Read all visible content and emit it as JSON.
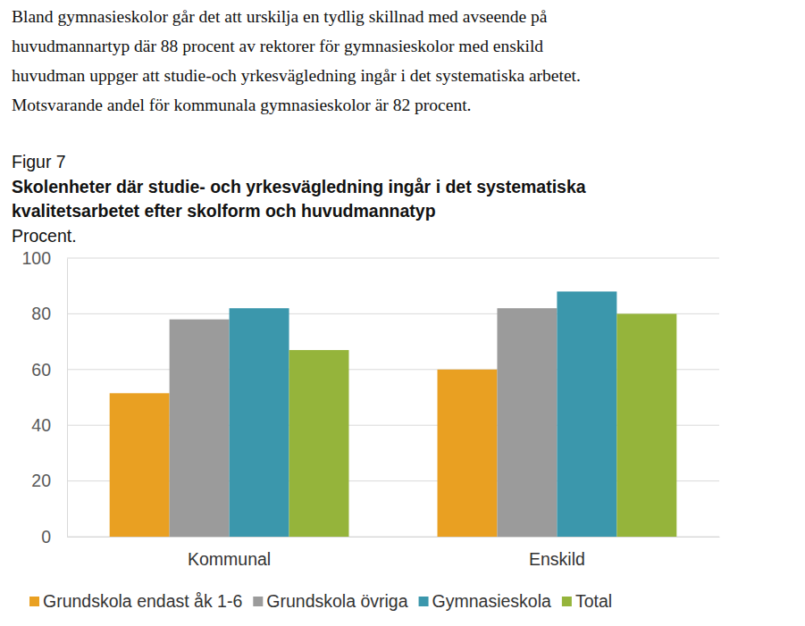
{
  "paragraph": [
    "Bland gymnasieskolor går det att urskilja en tydlig skillnad med avseende på",
    "huvudmannartyp där 88 procent av rektorer för gymnasieskolor med enskild",
    "huvudman uppger att studie-och yrkesvägledning ingår i det systematiska arbetet.",
    "Motsvarande andel för kommunala gymnasieskolor är 82 procent."
  ],
  "chart_data": {
    "type": "bar",
    "label": "Figur 7",
    "title": [
      "Skolenheter där studie- och yrkesvägledning ingår i det systematiska",
      "kvalitetsarbetet efter skolform och huvudmannatyp"
    ],
    "subtitle": "Procent.",
    "categories": [
      "Kommunal",
      "Enskild"
    ],
    "series": [
      {
        "name": "Grundskola endast åk 1-6",
        "color": "#E9A022",
        "values": [
          51.5,
          60
        ]
      },
      {
        "name": "Grundskola övriga",
        "color": "#9B9B9B",
        "values": [
          78,
          82
        ]
      },
      {
        "name": "Gymnasieskola",
        "color": "#3B97AC",
        "values": [
          82,
          88
        ]
      },
      {
        "name": "Total",
        "color": "#95B43B",
        "values": [
          67,
          80
        ]
      }
    ],
    "ylim": [
      0,
      100
    ],
    "yticks": [
      0,
      20,
      40,
      60,
      80,
      100
    ],
    "grid": true,
    "legend": "bottom"
  }
}
